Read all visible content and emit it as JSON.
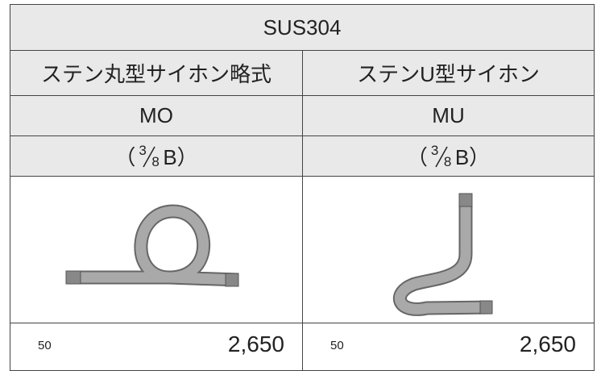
{
  "table": {
    "header": "SUS304",
    "columns": [
      {
        "name": "ステン丸型サイホン略式",
        "code": "MO",
        "size": {
          "prefix": "（",
          "numerator": "3",
          "denominator": "8",
          "suffix": "B）"
        },
        "quantity": "50",
        "price": "2,650"
      },
      {
        "name": "ステンU型サイホン",
        "code": "MU",
        "size": {
          "prefix": "（",
          "numerator": "3",
          "denominator": "8",
          "suffix": "B）"
        },
        "quantity": "50",
        "price": "2,650"
      }
    ]
  }
}
